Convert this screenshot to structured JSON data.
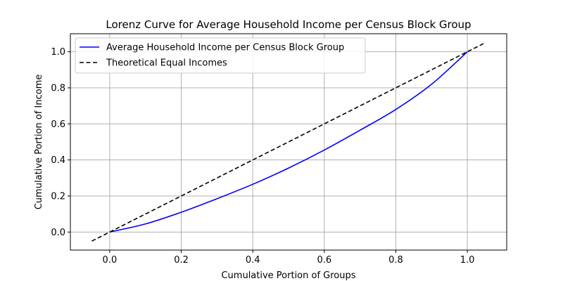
{
  "chart_data": {
    "type": "line",
    "title": "Lorenz Curve for Average Household Income per Census Block Group",
    "xlabel": "Cumulative Portion of Groups",
    "ylabel": "Cumulative Portion of Income",
    "xlim": [
      -0.11,
      1.11
    ],
    "ylim": [
      -0.1,
      1.1
    ],
    "xticks": [
      0.0,
      0.2,
      0.4,
      0.6,
      0.8,
      1.0
    ],
    "xtick_labels": [
      "0.0",
      "0.2",
      "0.4",
      "0.6",
      "0.8",
      "1.0"
    ],
    "yticks": [
      0.0,
      0.2,
      0.4,
      0.6,
      0.8,
      1.0
    ],
    "ytick_labels": [
      "0.0",
      "0.2",
      "0.4",
      "0.6",
      "0.8",
      "1.0"
    ],
    "grid": true,
    "legend_position": "upper-left",
    "series": [
      {
        "name": "Average Household Income per Census Block Group",
        "color": "#0000ff",
        "style": "solid",
        "x": [
          0.0,
          0.1,
          0.2,
          0.3,
          0.4,
          0.5,
          0.6,
          0.7,
          0.8,
          0.9,
          1.0
        ],
        "y": [
          0.0,
          0.045,
          0.11,
          0.185,
          0.265,
          0.355,
          0.455,
          0.565,
          0.68,
          0.82,
          1.0
        ]
      },
      {
        "name": "Theoretical Equal Incomes",
        "color": "#000000",
        "style": "dashed",
        "x": [
          -0.05,
          1.05
        ],
        "y": [
          -0.05,
          1.05
        ]
      }
    ]
  }
}
